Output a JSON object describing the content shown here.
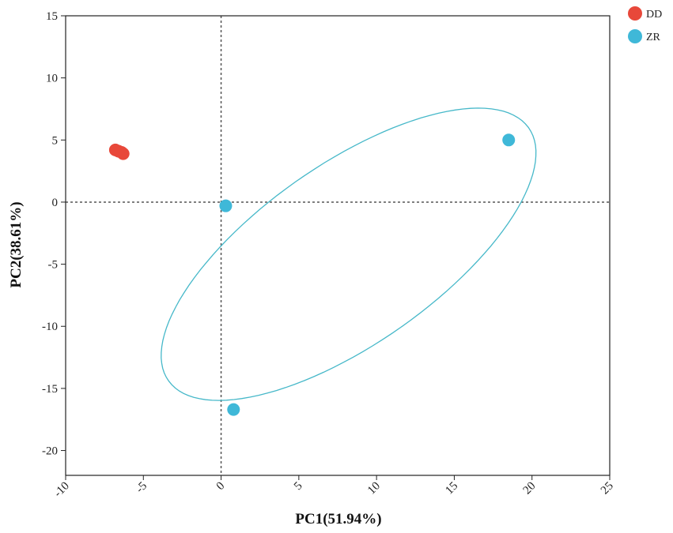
{
  "chart_data": {
    "type": "scatter",
    "xlabel": "PC1(51.94%)",
    "ylabel": "PC2(38.61%)",
    "xlim": [
      -10,
      25
    ],
    "ylim": [
      -22,
      15
    ],
    "xticks": [
      -10,
      -5,
      0,
      5,
      10,
      15,
      20,
      25
    ],
    "yticks": [
      -20,
      -15,
      -10,
      -5,
      0,
      5,
      10,
      15
    ],
    "reference_lines": {
      "x": 0,
      "y": 0,
      "style": "dotted"
    },
    "legend_position": "top-right",
    "grid": false,
    "series": [
      {
        "name": "DD",
        "color": "#e8483a",
        "points": [
          {
            "x": -6.8,
            "y": 4.2
          },
          {
            "x": -6.6,
            "y": 4.1
          },
          {
            "x": -6.4,
            "y": 4.0
          },
          {
            "x": -6.3,
            "y": 3.9
          }
        ]
      },
      {
        "name": "ZR",
        "color": "#3fb8d8",
        "points": [
          {
            "x": 0.3,
            "y": -0.3
          },
          {
            "x": 18.5,
            "y": 5.0
          },
          {
            "x": 0.8,
            "y": -16.7
          }
        ],
        "ellipse": {
          "center": [
            8.2,
            -4.2
          ],
          "semi_axes_data": [
            15.5,
            6.6
          ],
          "rotation_deg_data": 44,
          "color": "#46b8c9"
        }
      }
    ]
  }
}
